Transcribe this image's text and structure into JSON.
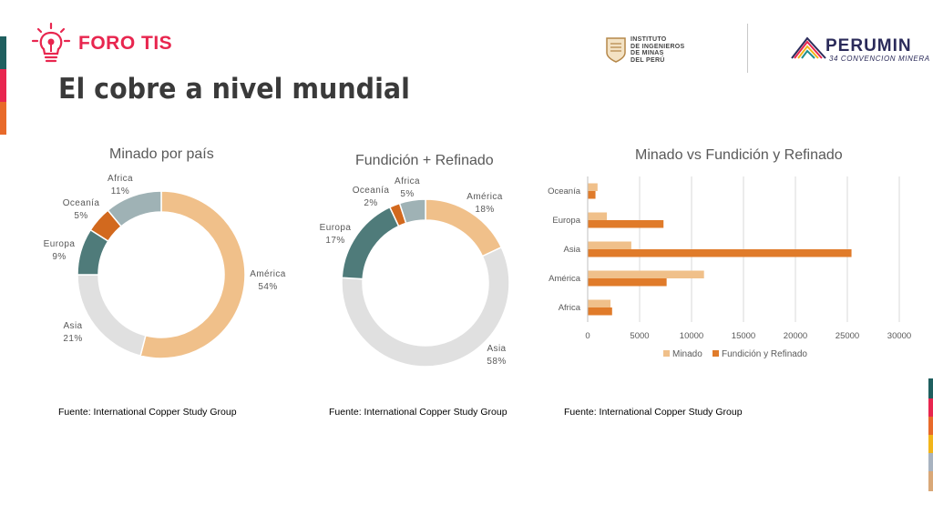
{
  "header": {
    "brand": "FORO TIS",
    "title": "El cobre a nivel mundial",
    "iim_lines": [
      "INSTITUTO",
      "DE INGENIEROS",
      "DE MINAS",
      "DEL PERÚ"
    ],
    "perumin_name": "PERUMIN",
    "perumin_sub": "34 CONVENCION MINERA"
  },
  "colors": {
    "accent_red": "#e8264f",
    "peach": "#f0c08a",
    "orange": "#e07b2a",
    "dark_orange": "#d2691e",
    "teal": "#4f7b7a",
    "light_grey": "#e0e0e0",
    "blue_grey": "#9fb2b5"
  },
  "sources": [
    "Fuente: International Copper Study Group",
    "Fuente: International Copper Study Group",
    "Fuente: International Copper Study Group"
  ],
  "chart_data": [
    {
      "type": "pie",
      "title": "Minado por país",
      "slices": [
        {
          "label": "América",
          "pct_label": "54%",
          "value": 54,
          "color": "#f0c08a"
        },
        {
          "label": "Asia",
          "pct_label": "21%",
          "value": 21,
          "color": "#e0e0e0"
        },
        {
          "label": "Europa",
          "pct_label": "9%",
          "value": 9,
          "color": "#4f7b7a"
        },
        {
          "label": "Oceanía",
          "pct_label": "5%",
          "value": 5,
          "color": "#d2691e"
        },
        {
          "label": "Africa",
          "pct_label": "11%",
          "value": 11,
          "color": "#9fb2b5"
        }
      ]
    },
    {
      "type": "pie",
      "title": "Fundición + Refinado",
      "slices": [
        {
          "label": "América",
          "pct_label": "18%",
          "value": 18,
          "color": "#f0c08a"
        },
        {
          "label": "Asia",
          "pct_label": "58%",
          "value": 58,
          "color": "#e0e0e0"
        },
        {
          "label": "Europa",
          "pct_label": "17%",
          "value": 17,
          "color": "#4f7b7a"
        },
        {
          "label": "Oceanía",
          "pct_label": "2%",
          "value": 2,
          "color": "#d2691e"
        },
        {
          "label": "Africa",
          "pct_label": "5%",
          "value": 5,
          "color": "#9fb2b5"
        }
      ]
    },
    {
      "type": "bar",
      "title": "Minado vs Fundición y Refinado",
      "orientation": "horizontal",
      "categories": [
        "Oceanía",
        "Europa",
        "Asia",
        "América",
        "Africa"
      ],
      "xlim": [
        0,
        30000
      ],
      "xticks": [
        "0",
        "5000",
        "10000",
        "15000",
        "20000",
        "25000",
        "30000"
      ],
      "grid": true,
      "legend_position": "bottom",
      "series": [
        {
          "name": "Minado",
          "color": "#f0c08a",
          "values": [
            950,
            1850,
            4200,
            11200,
            2200
          ]
        },
        {
          "name": "Fundición y Refinado",
          "color": "#e07b2a",
          "values": [
            750,
            7300,
            25400,
            7600,
            2350
          ]
        }
      ]
    }
  ]
}
